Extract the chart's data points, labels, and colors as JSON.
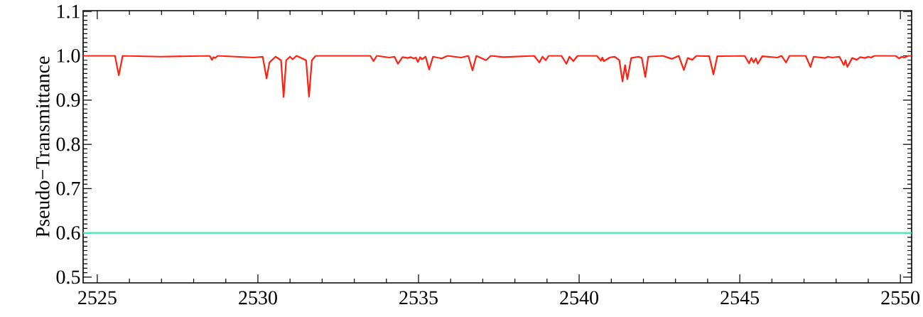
{
  "chart_data": {
    "type": "line",
    "ylabel": "Pseudo−Transmittance",
    "xlim": [
      2524.56,
      2550.35
    ],
    "ylim": [
      0.487,
      1.102
    ],
    "xticks": [
      2525,
      2530,
      2535,
      2540,
      2545,
      2550
    ],
    "yticks": [
      0.5,
      0.6,
      0.7,
      0.8,
      0.9,
      {
        "value": 1.0,
        "label": "1.0"
      },
      1.1
    ],
    "marker": "none",
    "line_style": "solid",
    "series": [
      {
        "color": "#ff2010",
        "x": [
          2524.56,
          2525.55,
          2525.67,
          2525.79,
          2526.98,
          2528.5,
          2528.57,
          2528.62,
          2528.67,
          2528.75,
          2529.87,
          2530.15,
          2530.27,
          2530.36,
          2530.55,
          2530.72,
          2530.8,
          2530.88,
          2531.0,
          2531.08,
          2531.2,
          2531.5,
          2531.59,
          2531.68,
          2531.8,
          2533.5,
          2533.6,
          2533.7,
          2534.09,
          2534.25,
          2534.36,
          2534.5,
          2534.67,
          2534.75,
          2534.85,
          2534.92,
          2534.98,
          2535.05,
          2535.11,
          2535.22,
          2535.33,
          2535.45,
          2535.72,
          2535.9,
          2536.33,
          2536.55,
          2536.68,
          2536.8,
          2537.1,
          2537.25,
          2537.65,
          2538.6,
          2538.76,
          2538.86,
          2538.96,
          2539.05,
          2539.45,
          2539.6,
          2539.7,
          2539.82,
          2539.95,
          2540.55,
          2540.68,
          2540.72,
          2540.77,
          2540.95,
          2541.1,
          2541.25,
          2541.35,
          2541.43,
          2541.5,
          2541.62,
          2541.85,
          2541.95,
          2542.06,
          2542.15,
          2542.6,
          2542.89,
          2543.1,
          2543.26,
          2543.38,
          2543.52,
          2543.65,
          2544.05,
          2544.18,
          2544.3,
          2545.15,
          2545.29,
          2545.36,
          2545.43,
          2545.5,
          2545.56,
          2545.7,
          2546.17,
          2546.3,
          2546.44,
          2546.55,
          2547.05,
          2547.2,
          2547.3,
          2547.65,
          2547.75,
          2547.87,
          2548.1,
          2548.24,
          2548.29,
          2548.35,
          2548.5,
          2548.64,
          2548.75,
          2548.9,
          2549.0,
          2549.08,
          2549.2,
          2549.85,
          2549.96,
          2550.05,
          2550.12,
          2550.25,
          2550.35
        ],
        "values": [
          1.0,
          1.0,
          0.956,
          1.0,
          0.998,
          1.0,
          0.991,
          0.997,
          0.995,
          1.0,
          0.996,
          0.998,
          0.949,
          0.985,
          0.998,
          0.99,
          0.907,
          0.99,
          0.998,
          0.992,
          1.0,
          0.99,
          0.908,
          0.99,
          1.0,
          1.0,
          0.988,
          1.0,
          0.996,
          0.998,
          0.982,
          0.997,
          0.995,
          0.997,
          0.994,
          0.996,
          0.986,
          0.997,
          0.992,
          0.998,
          0.969,
          0.998,
          0.994,
          1.0,
          0.996,
          1.0,
          0.967,
          1.0,
          0.99,
          1.0,
          0.997,
          1.0,
          0.985,
          0.998,
          0.99,
          1.0,
          1.0,
          0.982,
          0.998,
          0.988,
          1.0,
          1.0,
          0.989,
          0.996,
          0.988,
          0.996,
          0.998,
          0.99,
          0.942,
          0.979,
          0.947,
          0.995,
          0.998,
          0.995,
          0.952,
          0.998,
          1.0,
          0.993,
          1.0,
          0.968,
          0.995,
          0.991,
          1.0,
          0.999,
          0.958,
          0.999,
          1.0,
          0.983,
          0.995,
          0.985,
          0.994,
          0.982,
          0.999,
          0.996,
          1.0,
          0.985,
          1.0,
          1.0,
          0.975,
          0.998,
          0.995,
          0.998,
          0.996,
          0.998,
          0.979,
          0.99,
          0.975,
          0.995,
          0.991,
          0.997,
          0.995,
          0.998,
          0.996,
          1.0,
          1.0,
          0.994,
          0.998,
          0.996,
          1.0,
          1.0
        ]
      },
      {
        "color": "#30eeb0",
        "x": [
          2524.56,
          2550.35
        ],
        "values": [
          0.6,
          0.6
        ]
      }
    ]
  }
}
